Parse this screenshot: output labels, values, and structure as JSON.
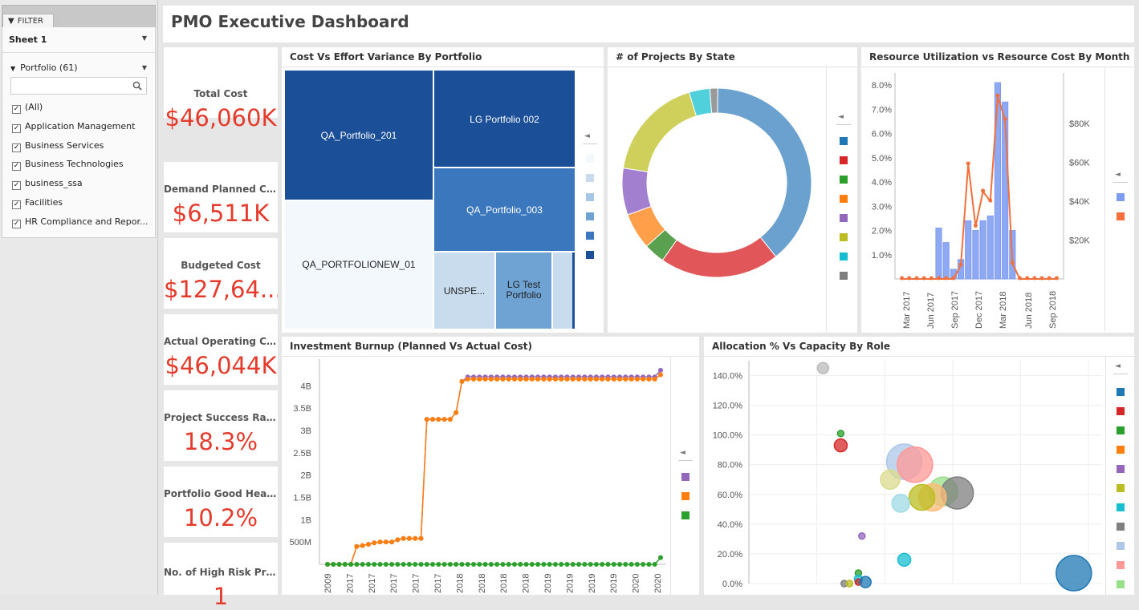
{
  "filter": {
    "tab_label": "FILTER",
    "sheet_label": "Sheet 1",
    "portfolio_label": "Portfolio (61)",
    "search_icon": "magnifier-icon",
    "items": [
      "(All)",
      "Application Management",
      "Business Services",
      "Business Technologies",
      "business_ssa",
      "Facilities",
      "HR Compliance and Repor..."
    ]
  },
  "header": {
    "title": "PMO Executive Dashboard"
  },
  "kpis": [
    {
      "label": "Total Cost",
      "value": "$46,060K"
    },
    {
      "label": "Demand Planned Cost",
      "value": "$6,511K"
    },
    {
      "label": "Budgeted Cost",
      "value": "$127,64..."
    },
    {
      "label": "Actual Operating Cost",
      "value": "$46,044K"
    },
    {
      "label": "Project Success Ratio",
      "value": "18.3%"
    },
    {
      "label": "Portfolio Good Health ...",
      "value": "10.2%"
    },
    {
      "label": "No. of High Risk Projects",
      "value": "1"
    }
  ],
  "colors": {
    "kpi_value": "#e53b2c",
    "treemap": [
      "#f3f8fd",
      "#c8dcee",
      "#a7c7e6",
      "#6fa3d4",
      "#3a77bd",
      "#1b4f98"
    ],
    "series": [
      "#1f77b4",
      "#d62728",
      "#2ca02c",
      "#ff7f0e",
      "#9467bd",
      "#bcbd22",
      "#17becf",
      "#7f7f7f",
      "#aec7e8",
      "#ff9896",
      "#98df8a"
    ]
  },
  "panels": {
    "treemap_title": "Cost Vs Effort Variance By Portfolio",
    "donut_title": "# of Projects By State",
    "resource_title": "Resource Utilization vs Resource Cost By Month",
    "burnup_title": "Investment Burnup (Planned Vs Actual Cost)",
    "allocation_title": "Allocation % Vs Capacity By Role",
    "legend_arrow": "◄"
  },
  "chart_data": [
    {
      "type": "treemap",
      "title": "Cost Vs Effort Variance By Portfolio",
      "nodes": [
        {
          "label": "QA_Portfolio_201",
          "value": 33
        },
        {
          "label": "QA_PORTFOLIONEW_01",
          "value": 32
        },
        {
          "label": "LG Portfolio 002",
          "value": 23
        },
        {
          "label": "QA_Portfolio_003",
          "value": 21
        },
        {
          "label": "UNSPE...",
          "value": 15
        },
        {
          "label": "LG Test Portfolio",
          "value": 13
        },
        {
          "label": "",
          "value": 5
        }
      ]
    },
    {
      "type": "pie",
      "title": "# of Projects By State",
      "donut": true,
      "values": [
        44,
        23,
        4,
        7,
        9,
        20,
        4,
        1.5
      ],
      "colors": [
        "#6aa1cf",
        "#e15759",
        "#59a14f",
        "#ff9f4a",
        "#a37fd0",
        "#cfcf5c",
        "#4fd0da",
        "#9a9a9a"
      ]
    },
    {
      "type": "bar",
      "title": "Resource Utilization vs Resource Cost By Month",
      "x_labels": [
        "Mar 2017",
        "Jun 2017",
        "Sep 2017",
        "Dec 2017",
        "Mar 2018",
        "Jun 2018",
        "Sep 2018"
      ],
      "y_left_ticks": [
        "1.0%",
        "2.0%",
        "3.0%",
        "4.0%",
        "5.0%",
        "6.0%",
        "7.0%",
        "8.0%"
      ],
      "y_right_ticks": [
        "$20K",
        "$40K",
        "$60K",
        "$80K"
      ],
      "bars_pct": [
        0,
        0,
        0,
        0,
        0,
        2.1,
        1.5,
        0.4,
        0.8,
        2.4,
        2.0,
        2.4,
        2.6,
        8.1,
        7.3,
        2.0,
        0,
        0,
        0,
        0,
        0,
        0
      ],
      "line_cost_k": [
        0,
        0,
        0,
        0,
        0,
        0,
        0,
        0,
        7,
        59,
        27,
        45,
        40,
        94,
        82,
        8,
        0,
        0,
        0,
        0,
        0,
        0
      ],
      "y_left_lim": [
        0,
        8.5
      ],
      "y_right_lim": [
        0,
        106
      ]
    },
    {
      "type": "line",
      "title": "Investment Burnup (Planned Vs Actual Cost)",
      "x_labels": [
        "2009",
        "2017",
        "2017",
        "2017",
        "2017",
        "2017",
        "2018",
        "2018",
        "2018",
        "2018",
        "2019",
        "2019",
        "2019",
        "2019",
        "2020",
        "2020"
      ],
      "y_ticks": [
        "500M",
        "1B",
        "1.5B",
        "2B",
        "2.5B",
        "3B",
        "3.5B",
        "4B"
      ],
      "ylim": [
        0,
        4.6
      ],
      "series": [
        {
          "color": "#9467bd",
          "values": [
            0,
            0,
            0,
            0,
            0,
            0.4,
            0.42,
            0.45,
            0.48,
            0.5,
            0.5,
            0.5,
            0.55,
            0.58,
            0.58,
            0.58,
            0.58,
            3.25,
            3.25,
            3.25,
            3.25,
            3.25,
            3.4,
            4.1,
            4.2,
            4.2,
            4.2,
            4.2,
            4.2,
            4.2,
            4.2,
            4.2,
            4.2,
            4.2,
            4.2,
            4.2,
            4.2,
            4.2,
            4.2,
            4.2,
            4.2,
            4.2,
            4.2,
            4.2,
            4.2,
            4.2,
            4.2,
            4.2,
            4.2,
            4.2,
            4.2,
            4.2,
            4.2,
            4.2,
            4.2,
            4.2,
            4.2,
            4.35
          ]
        },
        {
          "color": "#ff7f0e",
          "values": [
            0,
            0,
            0,
            0,
            0,
            0.4,
            0.42,
            0.45,
            0.48,
            0.5,
            0.5,
            0.5,
            0.55,
            0.58,
            0.58,
            0.58,
            0.58,
            3.25,
            3.25,
            3.25,
            3.25,
            3.25,
            3.4,
            4.1,
            4.15,
            4.15,
            4.15,
            4.15,
            4.15,
            4.15,
            4.15,
            4.15,
            4.15,
            4.15,
            4.15,
            4.15,
            4.15,
            4.15,
            4.15,
            4.15,
            4.15,
            4.15,
            4.15,
            4.15,
            4.15,
            4.15,
            4.15,
            4.15,
            4.15,
            4.15,
            4.15,
            4.15,
            4.15,
            4.15,
            4.15,
            4.15,
            4.15,
            4.25
          ]
        },
        {
          "color": "#2ca02c",
          "values": [
            0,
            0,
            0,
            0,
            0,
            0,
            0,
            0,
            0,
            0,
            0,
            0,
            0,
            0,
            0,
            0,
            0,
            0,
            0,
            0,
            0,
            0,
            0,
            0,
            0,
            0,
            0,
            0,
            0,
            0,
            0,
            0,
            0,
            0,
            0,
            0,
            0,
            0,
            0,
            0,
            0,
            0,
            0,
            0,
            0,
            0,
            0,
            0,
            0,
            0,
            0,
            0,
            0,
            0,
            0,
            0,
            0,
            0.15
          ]
        }
      ]
    },
    {
      "type": "scatter",
      "title": "Allocation % Vs Capacity By Role",
      "y_ticks": [
        "0.0%",
        "20.0%",
        "40.0%",
        "60.0%",
        "80.0%",
        "100.0%",
        "120.0%",
        "140.0%"
      ],
      "ylim": [
        0,
        150
      ],
      "xlim": [
        0,
        100
      ],
      "points": [
        {
          "x": 21,
          "y": 145,
          "r": 7,
          "color": "#bbbbbb"
        },
        {
          "x": 26,
          "y": 101,
          "r": 4,
          "color": "#2ca02c"
        },
        {
          "x": 26,
          "y": 93,
          "r": 8,
          "color": "#d62728"
        },
        {
          "x": 44,
          "y": 82,
          "r": 22,
          "color": "#aec7e8"
        },
        {
          "x": 47,
          "y": 80,
          "r": 22,
          "color": "#ff9896"
        },
        {
          "x": 40,
          "y": 70,
          "r": 12,
          "color": "#dbdb8d"
        },
        {
          "x": 55,
          "y": 62,
          "r": 18,
          "color": "#98df8a"
        },
        {
          "x": 59,
          "y": 61,
          "r": 20,
          "color": "#7f7f7f"
        },
        {
          "x": 52,
          "y": 58,
          "r": 17,
          "color": "#ffbb78"
        },
        {
          "x": 49,
          "y": 58,
          "r": 16,
          "color": "#bcbd22"
        },
        {
          "x": 43,
          "y": 54,
          "r": 11,
          "color": "#9edae5"
        },
        {
          "x": 32,
          "y": 32,
          "r": 4,
          "color": "#9467bd"
        },
        {
          "x": 44,
          "y": 16,
          "r": 8,
          "color": "#17becf"
        },
        {
          "x": 31,
          "y": 7,
          "r": 4,
          "color": "#2ca02c"
        },
        {
          "x": 31,
          "y": 3,
          "r": 5,
          "color": "#17becf"
        },
        {
          "x": 31,
          "y": 1,
          "r": 4,
          "color": "#d62728"
        },
        {
          "x": 33,
          "y": 1,
          "r": 7,
          "color": "#1f77b4"
        },
        {
          "x": 27,
          "y": 0,
          "r": 4,
          "color": "#7f7f7f"
        },
        {
          "x": 28.5,
          "y": 0,
          "r": 4,
          "color": "#bcbd22"
        },
        {
          "x": 92,
          "y": 7,
          "r": 22,
          "color": "#1f77b4"
        }
      ]
    }
  ]
}
